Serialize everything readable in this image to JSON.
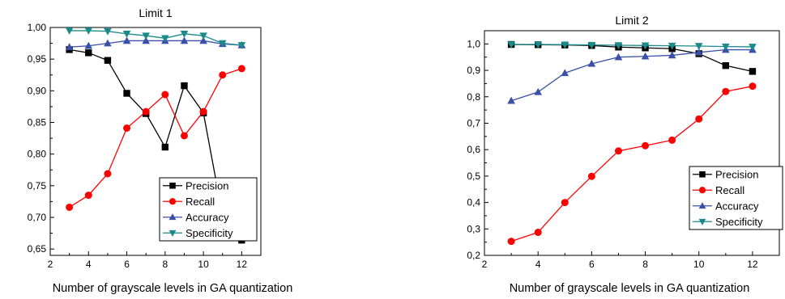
{
  "chart_data": [
    {
      "type": "line",
      "title": "Limit 1",
      "xlabel": "Number of grayscale levels in GA quantization",
      "ylabel": "",
      "xlim": [
        2,
        13
      ],
      "ylim": [
        0.64,
        1.0
      ],
      "xticks": [
        2,
        4,
        6,
        8,
        10,
        12
      ],
      "xtick_labels": [
        "2",
        "4",
        "6",
        "8",
        "10",
        "12"
      ],
      "yticks": [
        0.65,
        0.7,
        0.75,
        0.8,
        0.85,
        0.9,
        0.95,
        1.0
      ],
      "ytick_labels": [
        "0,65",
        "0,70",
        "0,75",
        "0,80",
        "0,85",
        "0,90",
        "0,95",
        "1,00"
      ],
      "x": [
        3,
        4,
        5,
        6,
        7,
        8,
        9,
        10,
        11,
        12
      ],
      "grid": false,
      "legend_position": "bottom-right",
      "series": [
        {
          "name": "Precision",
          "color": "#000000",
          "marker": "square",
          "values": [
            0.965,
            0.96,
            0.948,
            0.896,
            0.864,
            0.811,
            0.908,
            0.865,
            0.703,
            0.664
          ]
        },
        {
          "name": "Recall",
          "color": "#ff0000",
          "marker": "circle",
          "values": [
            0.716,
            0.735,
            0.769,
            0.841,
            0.867,
            0.894,
            0.829,
            0.867,
            0.925,
            0.935
          ]
        },
        {
          "name": "Accuracy",
          "color": "#3a4fa8",
          "marker": "triangle-up",
          "values": [
            0.969,
            0.971,
            0.975,
            0.979,
            0.979,
            0.979,
            0.979,
            0.979,
            0.974,
            0.972
          ]
        },
        {
          "name": "Specificity",
          "color": "#1a8a8a",
          "marker": "triangle-down",
          "values": [
            0.995,
            0.995,
            0.994,
            0.99,
            0.987,
            0.983,
            0.99,
            0.987,
            0.975,
            0.972
          ]
        }
      ]
    },
    {
      "type": "line",
      "title": "Limit 2",
      "xlabel": "Number of grayscale levels in GA quantization",
      "ylabel": "",
      "xlim": [
        2,
        13
      ],
      "ylim": [
        0.2,
        1.05
      ],
      "xticks": [
        2,
        4,
        6,
        8,
        10,
        12
      ],
      "xtick_labels": [
        "2",
        "4",
        "6",
        "8",
        "10",
        "12"
      ],
      "yticks": [
        0.2,
        0.3,
        0.4,
        0.5,
        0.6,
        0.7,
        0.8,
        0.9,
        1.0
      ],
      "ytick_labels": [
        "0,2",
        "0,3",
        "0,4",
        "0,5",
        "0,6",
        "0,7",
        "0,8",
        "0,9",
        "1,0"
      ],
      "x": [
        3,
        4,
        5,
        6,
        7,
        8,
        9,
        10,
        11,
        12
      ],
      "grid": false,
      "legend_position": "bottom-right",
      "series": [
        {
          "name": "Precision",
          "color": "#000000",
          "marker": "square",
          "values": [
            0.998,
            0.997,
            0.996,
            0.994,
            0.988,
            0.985,
            0.982,
            0.963,
            0.918,
            0.896
          ]
        },
        {
          "name": "Recall",
          "color": "#ff0000",
          "marker": "circle",
          "values": [
            0.253,
            0.287,
            0.4,
            0.499,
            0.595,
            0.615,
            0.636,
            0.716,
            0.82,
            0.84
          ]
        },
        {
          "name": "Accuracy",
          "color": "#3a4fa8",
          "marker": "triangle-up",
          "values": [
            0.785,
            0.818,
            0.89,
            0.925,
            0.95,
            0.953,
            0.957,
            0.968,
            0.978,
            0.978
          ]
        },
        {
          "name": "Specificity",
          "color": "#1a8a8a",
          "marker": "triangle-down",
          "values": [
            0.998,
            0.998,
            0.997,
            0.996,
            0.995,
            0.994,
            0.993,
            0.992,
            0.99,
            0.989
          ]
        }
      ]
    }
  ]
}
